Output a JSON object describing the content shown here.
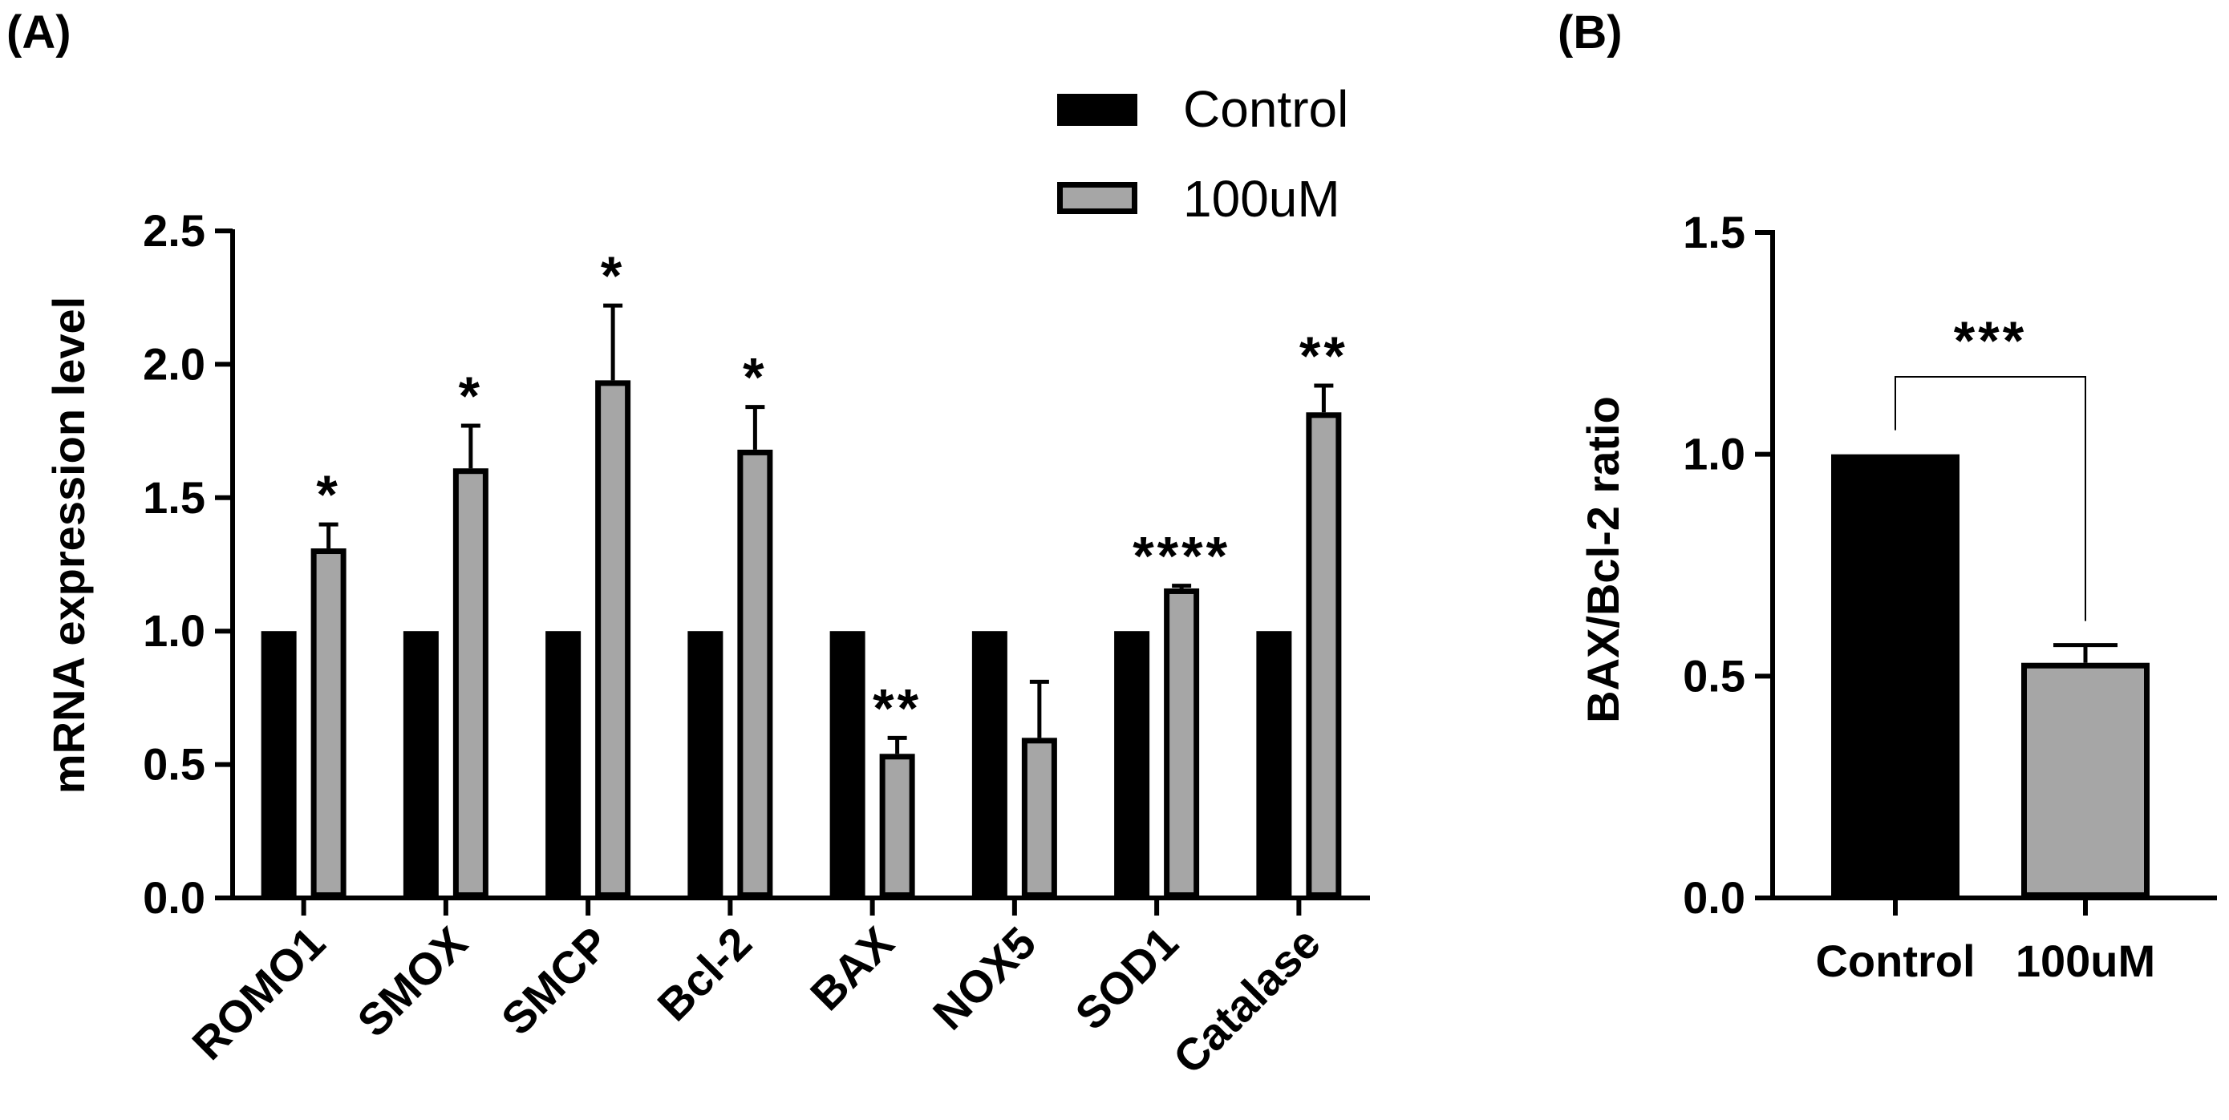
{
  "chart_data": [
    {
      "panel": "(A)",
      "type": "bar",
      "ylabel": "mRNA expression level",
      "ylim": [
        0,
        2.5
      ],
      "yticks": [
        "0.0",
        "0.5",
        "1.0",
        "1.5",
        "2.0",
        "2.5"
      ],
      "categories": [
        "ROMO1",
        "SMOX",
        "SMCP",
        "Bcl-2",
        "BAX",
        "NOX5",
        "SOD1",
        "Catalase"
      ],
      "series": [
        {
          "name": "Control",
          "color": "#000000",
          "values": [
            1.0,
            1.0,
            1.0,
            1.0,
            1.0,
            1.0,
            1.0,
            1.0
          ],
          "errors": [
            0,
            0,
            0,
            0,
            0,
            0,
            0,
            0
          ]
        },
        {
          "name": "100uM",
          "color": "#a6a6a6",
          "values": [
            1.31,
            1.61,
            1.94,
            1.68,
            0.54,
            0.6,
            1.16,
            1.82
          ],
          "errors": [
            0.09,
            0.16,
            0.28,
            0.16,
            0.06,
            0.21,
            0.01,
            0.1
          ]
        }
      ],
      "significance": [
        "*",
        "*",
        "*",
        "*",
        "**",
        "",
        "****",
        "**"
      ],
      "legend": [
        "Control",
        "100uM"
      ],
      "legend_position": "top-right"
    },
    {
      "panel": "(B)",
      "type": "bar",
      "ylabel": "BAX/Bcl-2 ratio",
      "ylim": [
        0,
        1.5
      ],
      "yticks": [
        "0.0",
        "0.5",
        "1.0",
        "1.5"
      ],
      "categories": [
        "Control",
        "100uM"
      ],
      "values": [
        1.0,
        0.53
      ],
      "errors": [
        0,
        0.04
      ],
      "colors": [
        "#000000",
        "#a6a6a6"
      ],
      "significance": "***"
    }
  ]
}
